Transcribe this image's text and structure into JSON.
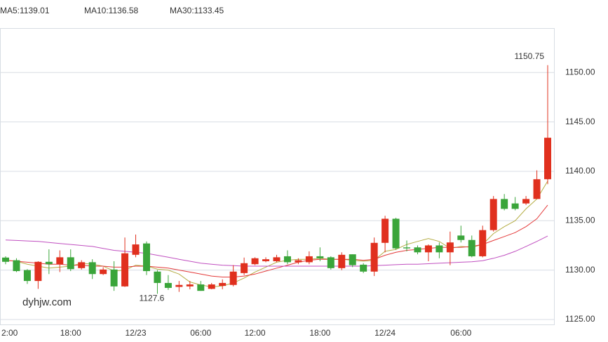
{
  "chart_data": {
    "type": "candlestick",
    "categories": [
      "2:00",
      null,
      null,
      null,
      null,
      null,
      "18:00",
      null,
      null,
      null,
      null,
      null,
      "12/23",
      null,
      null,
      null,
      null,
      null,
      "06:00",
      null,
      null,
      null,
      null,
      "12:00",
      null,
      null,
      null,
      null,
      null,
      "18:00",
      null,
      null,
      null,
      null,
      null,
      "12/24",
      null,
      null,
      null,
      null,
      null,
      null,
      "06:00",
      null,
      null,
      null,
      null,
      null,
      null,
      null,
      null
    ],
    "open": [
      1131.27,
      1131.0,
      1130.0,
      1128.9,
      1130.84,
      1130.6,
      1131.3,
      1130.2,
      1130.8,
      1129.6,
      1130.06,
      1128.35,
      1131.55,
      1132.7,
      1129.85,
      1128.7,
      1128.3,
      1128.35,
      1128.55,
      1128.1,
      1128.4,
      1128.5,
      1129.7,
      1130.6,
      1130.9,
      1130.9,
      1131.4,
      1130.8,
      1130.8,
      1131.4,
      1131.3,
      1130.2,
      1131.6,
      1130.55,
      1129.85,
      1132.76,
      1135.2,
      1132.3,
      1132.3,
      1131.8,
      1132.5,
      1131.8,
      1133.5,
      1133.05,
      1131.4,
      1134.05,
      1137.2,
      1136.75,
      1136.75,
      1137.2,
      1139.2
    ],
    "high": [
      1131.4,
      1131.2,
      1130.1,
      1130.9,
      1132.1,
      1132.0,
      1132.1,
      1131.0,
      1131.1,
      1130.3,
      1130.9,
      1133.3,
      1133.6,
      1132.9,
      1130.0,
      1129.5,
      1128.9,
      1128.9,
      1128.9,
      1128.7,
      1129.06,
      1130.5,
      1131.27,
      1131.3,
      1131.3,
      1131.55,
      1132.0,
      1131.2,
      1131.9,
      1132.3,
      1131.4,
      1131.8,
      1131.6,
      1130.7,
      1133.3,
      1135.5,
      1135.3,
      1133.0,
      1132.5,
      1132.6,
      1132.8,
      1133.9,
      1134.5,
      1133.5,
      1134.5,
      1137.5,
      1137.7,
      1137.4,
      1137.5,
      1140.1,
      1150.75
    ],
    "low": [
      1130.6,
      1129.8,
      1128.6,
      1128.1,
      1129.6,
      1129.8,
      1129.9,
      1130.06,
      1129.1,
      1129.5,
      1127.9,
      1128.3,
      1131.3,
      1129.5,
      1127.6,
      1128.0,
      1127.8,
      1128.06,
      1127.9,
      1128.06,
      1128.06,
      1128.35,
      1129.5,
      1130.5,
      1130.8,
      1130.8,
      1130.6,
      1130.6,
      1130.6,
      1130.9,
      1130.06,
      1130.0,
      1130.3,
      1129.7,
      1129.4,
      1131.8,
      1132.05,
      1131.9,
      1131.6,
      1130.9,
      1131.2,
      1130.5,
      1132.8,
      1131.3,
      1131.3,
      1133.9,
      1136.05,
      1136.05,
      1136.6,
      1137.2,
      1138.7
    ],
    "close": [
      1130.84,
      1129.9,
      1128.9,
      1130.84,
      1130.6,
      1131.3,
      1130.1,
      1130.8,
      1129.6,
      1130.06,
      1128.35,
      1131.7,
      1132.6,
      1129.9,
      1128.7,
      1128.2,
      1128.5,
      1128.55,
      1127.9,
      1128.55,
      1128.7,
      1129.85,
      1130.7,
      1131.2,
      1131.1,
      1131.3,
      1130.8,
      1131.0,
      1131.4,
      1131.2,
      1130.2,
      1131.55,
      1130.5,
      1129.85,
      1132.76,
      1135.2,
      1132.2,
      1132.2,
      1131.8,
      1132.5,
      1131.8,
      1132.8,
      1133.05,
      1131.4,
      1134.05,
      1137.2,
      1136.2,
      1136.2,
      1137.2,
      1139.2,
      1143.4
    ],
    "up_color": "#e0301e",
    "down_color": "#3aa53a",
    "series": [
      {
        "name": "MA5:1139.01",
        "color": "#b5ad45",
        "values": [
          1131.0,
          1130.9,
          1130.6,
          1130.4,
          1130.2,
          1130.3,
          1130.4,
          1130.7,
          1130.6,
          1130.4,
          1129.9,
          1130.0,
          1130.5,
          1130.4,
          1130.1,
          1130.0,
          1129.6,
          1128.8,
          1128.5,
          1128.3,
          1128.4,
          1128.7,
          1129.2,
          1129.8,
          1130.3,
          1130.8,
          1131.0,
          1131.1,
          1131.1,
          1131.2,
          1131.1,
          1131.1,
          1131.0,
          1130.9,
          1131.0,
          1131.9,
          1132.1,
          1132.6,
          1132.9,
          1133.2,
          1132.9,
          1132.2,
          1132.4,
          1132.3,
          1132.6,
          1133.7,
          1134.4,
          1135.0,
          1136.2,
          1137.2,
          1139.01
        ]
      },
      {
        "name": "MA10:1136.58",
        "color": "#e43a3a",
        "values": [
          1131.0,
          1130.9,
          1130.8,
          1130.7,
          1130.6,
          1130.6,
          1130.5,
          1130.5,
          1130.4,
          1130.4,
          1130.3,
          1130.3,
          1130.4,
          1130.4,
          1130.3,
          1130.2,
          1130.0,
          1129.8,
          1129.6,
          1129.4,
          1129.3,
          1129.3,
          1129.4,
          1129.6,
          1129.9,
          1130.2,
          1130.5,
          1130.8,
          1131.0,
          1131.1,
          1131.1,
          1131.1,
          1131.1,
          1131.0,
          1131.1,
          1131.5,
          1131.8,
          1132.0,
          1132.1,
          1132.2,
          1132.3,
          1132.3,
          1132.3,
          1132.4,
          1132.6,
          1133.0,
          1133.4,
          1133.8,
          1134.4,
          1135.2,
          1136.58
        ]
      },
      {
        "name": "MA30:1133.45",
        "color": "#c04fc0",
        "values": [
          1133.05,
          1133.0,
          1132.95,
          1132.9,
          1132.8,
          1132.7,
          1132.6,
          1132.5,
          1132.4,
          1132.2,
          1132.0,
          1131.9,
          1131.8,
          1131.7,
          1131.5,
          1131.3,
          1131.1,
          1130.9,
          1130.7,
          1130.6,
          1130.5,
          1130.45,
          1130.4,
          1130.4,
          1130.4,
          1130.4,
          1130.4,
          1130.4,
          1130.4,
          1130.4,
          1130.4,
          1130.4,
          1130.4,
          1130.4,
          1130.45,
          1130.5,
          1130.55,
          1130.6,
          1130.6,
          1130.65,
          1130.7,
          1130.75,
          1130.8,
          1130.85,
          1130.95,
          1131.2,
          1131.5,
          1131.9,
          1132.4,
          1132.9,
          1133.45
        ]
      }
    ],
    "ylim": [
      1124.5,
      1154.5
    ],
    "yticks": [
      {
        "value": 1125,
        "label": "1125.00"
      },
      {
        "value": 1130,
        "label": "1130.00"
      },
      {
        "value": 1135,
        "label": "1135.00"
      },
      {
        "value": 1140,
        "label": "1140.00"
      },
      {
        "value": 1145,
        "label": "1145.00"
      },
      {
        "value": 1150,
        "label": "1150.00"
      }
    ],
    "grid": true,
    "watermark": "dyhjw.com"
  }
}
